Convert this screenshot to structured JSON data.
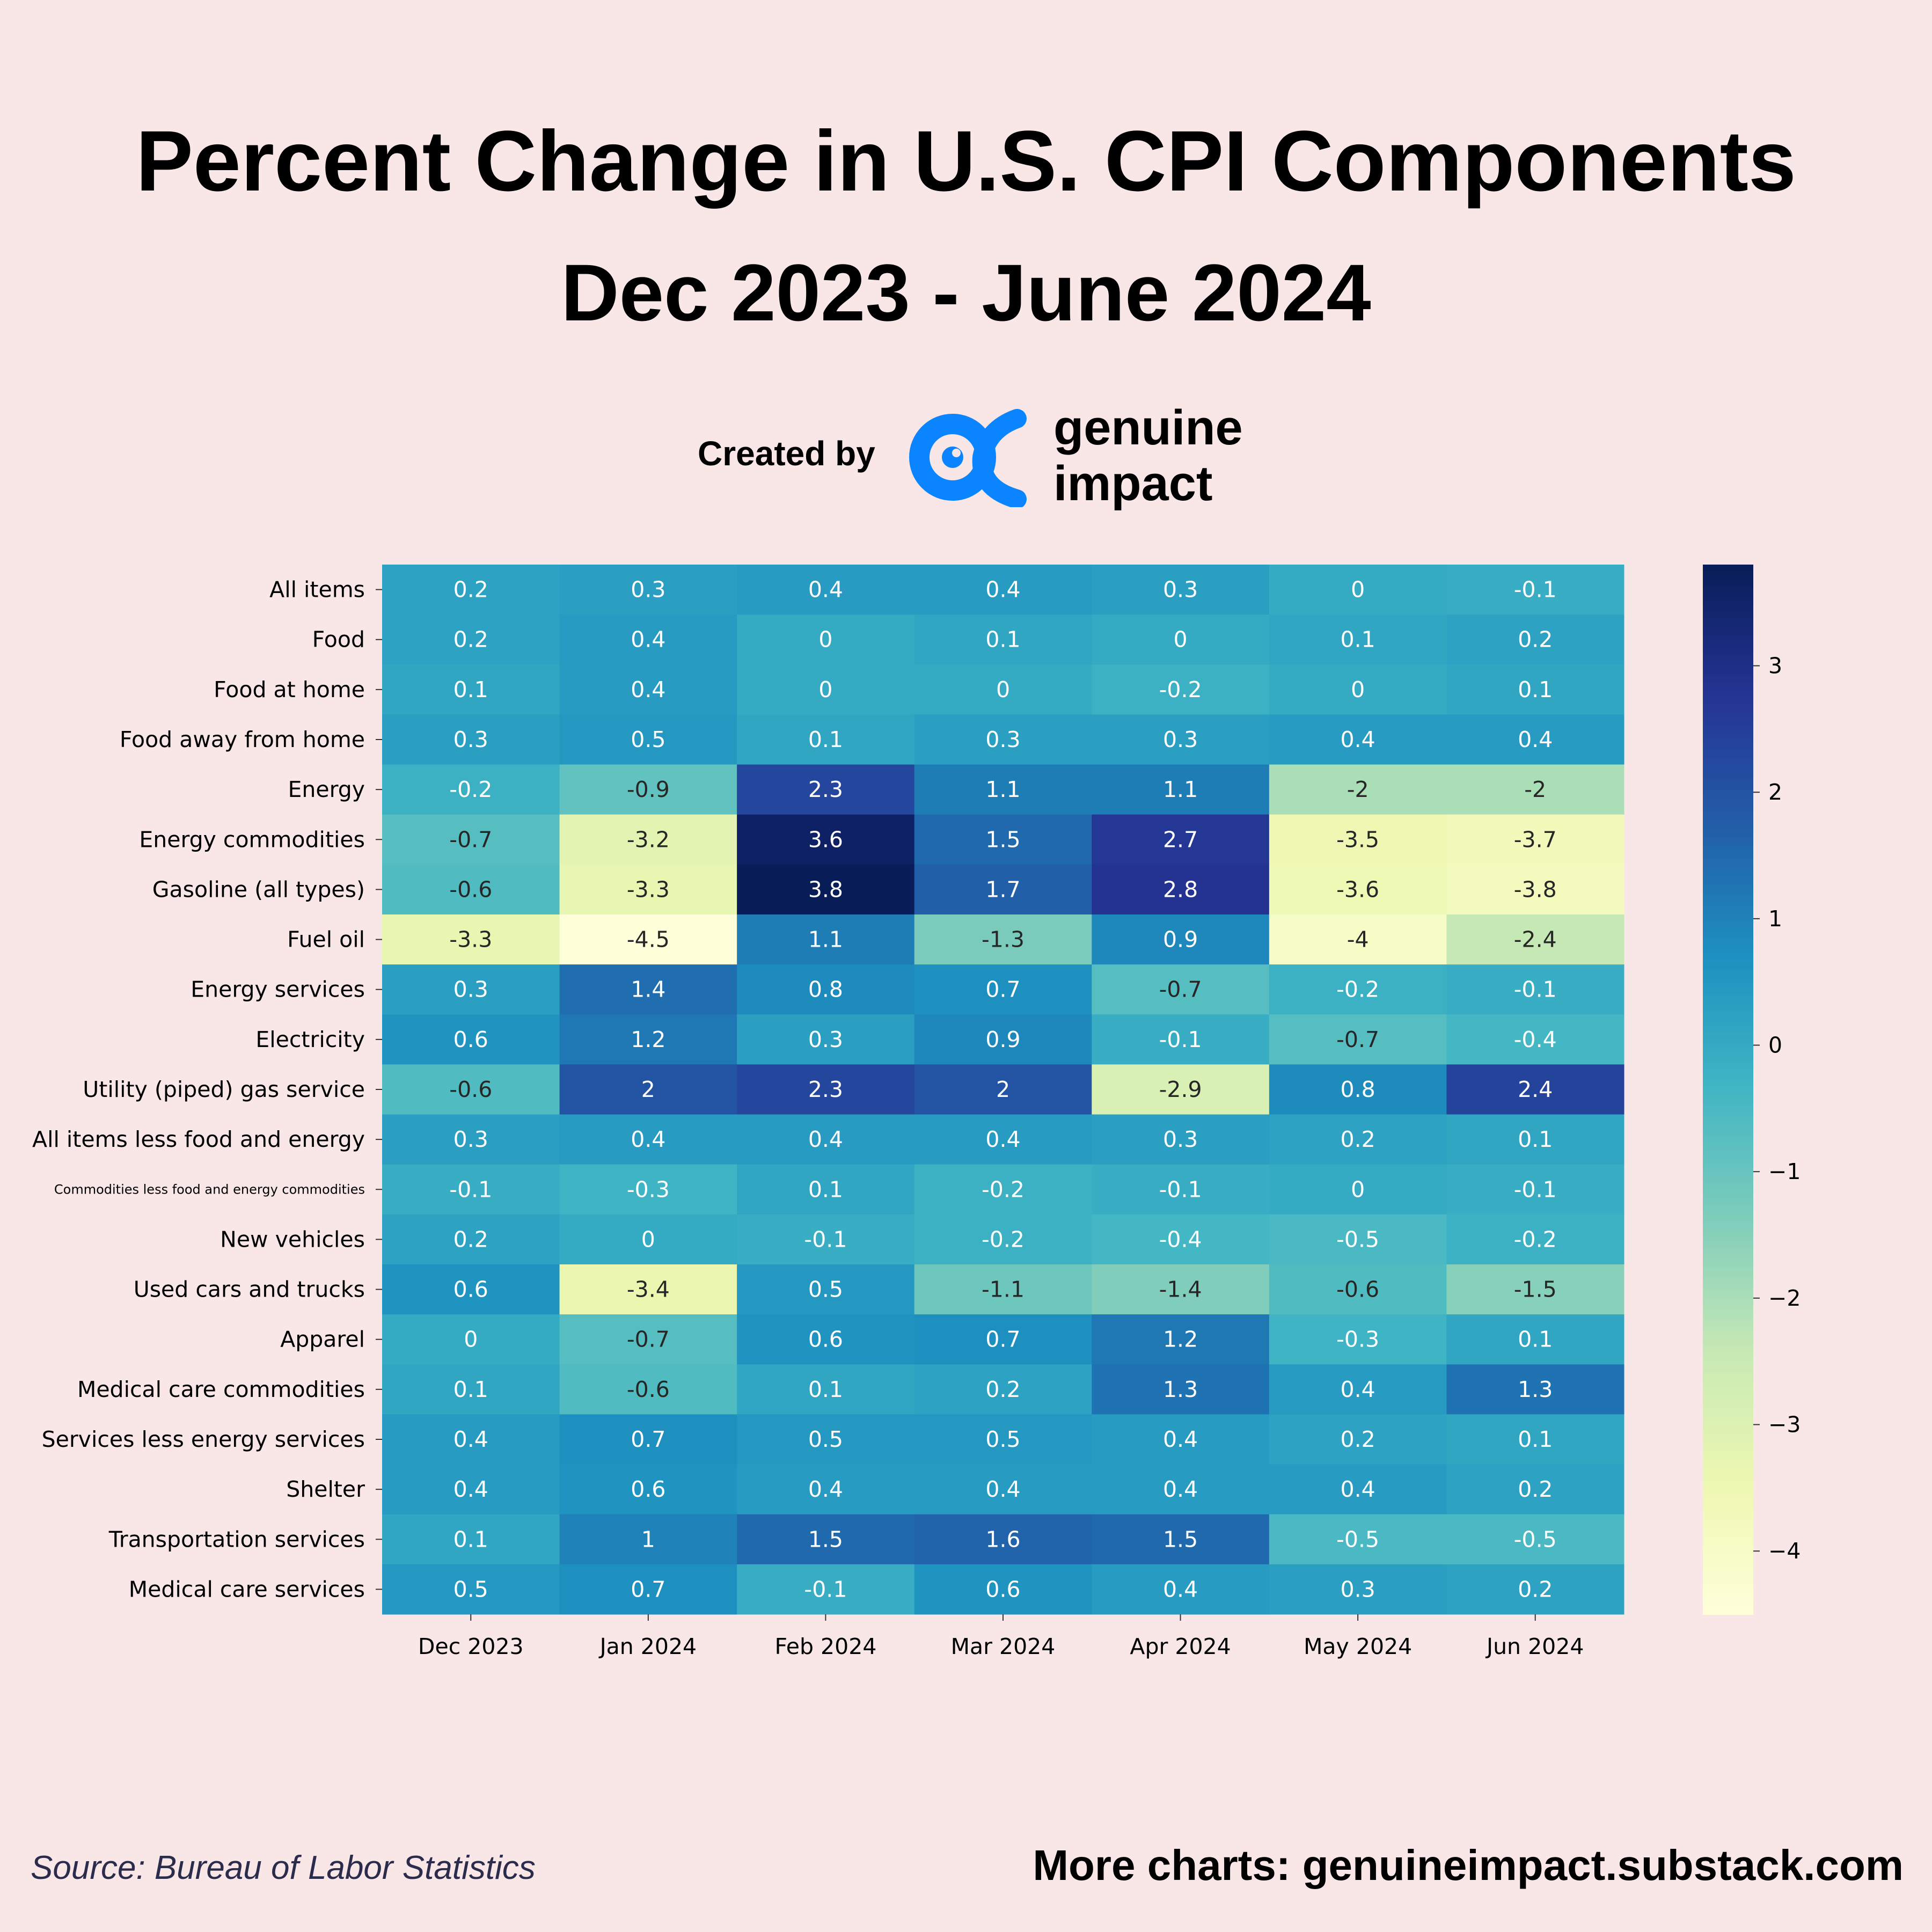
{
  "header": {
    "title": "Percent Change in U.S. CPI Components",
    "subtitle": "Dec 2023 - June 2024",
    "created_by": "Created by",
    "brand_line1": "genuine",
    "brand_line2": "impact",
    "brand_color": "#0a84ff"
  },
  "footer": {
    "source": "Source: Bureau of Labor Statistics",
    "more": "More charts: genuineimpact.substack.com"
  },
  "chart_data": {
    "type": "heatmap",
    "colormap": "YlGnBu",
    "colorbar": {
      "range": [
        -4.5,
        3.8
      ],
      "ticks": [
        3,
        2,
        1,
        0,
        -1,
        -2,
        -3,
        -4
      ]
    },
    "x": [
      "Dec 2023",
      "Jan 2024",
      "Feb 2024",
      "Mar 2024",
      "Apr 2024",
      "May 2024",
      "Jun 2024"
    ],
    "y": [
      "All items",
      "Food",
      "Food at home",
      "Food away from home",
      "Energy",
      "Energy commodities",
      "Gasoline (all types)",
      "Fuel oil",
      "Energy services",
      "Electricity",
      "Utility (piped) gas service",
      "All items less food and energy",
      "Commodities less food and energy commodities",
      "New vehicles",
      "Used cars and trucks",
      "Apparel",
      "Medical care commodities",
      "Services less energy services",
      "Shelter",
      "Transportation services",
      "Medical care services"
    ],
    "values": [
      [
        0.2,
        0.3,
        0.4,
        0.4,
        0.3,
        0,
        -0.1
      ],
      [
        0.2,
        0.4,
        0,
        0.1,
        0,
        0.1,
        0.2
      ],
      [
        0.1,
        0.4,
        0,
        0,
        -0.2,
        0,
        0.1
      ],
      [
        0.3,
        0.5,
        0.1,
        0.3,
        0.3,
        0.4,
        0.4
      ],
      [
        -0.2,
        -0.9,
        2.3,
        1.1,
        1.1,
        -2,
        -2
      ],
      [
        -0.7,
        -3.2,
        3.6,
        1.5,
        2.7,
        -3.5,
        -3.7
      ],
      [
        -0.6,
        -3.3,
        3.8,
        1.7,
        2.8,
        -3.6,
        -3.8
      ],
      [
        -3.3,
        -4.5,
        1.1,
        -1.3,
        0.9,
        -4,
        -2.4
      ],
      [
        0.3,
        1.4,
        0.8,
        0.7,
        -0.7,
        -0.2,
        -0.1
      ],
      [
        0.6,
        1.2,
        0.3,
        0.9,
        -0.1,
        -0.7,
        -0.4
      ],
      [
        -0.6,
        2,
        2.3,
        2,
        -2.9,
        0.8,
        2.4
      ],
      [
        0.3,
        0.4,
        0.4,
        0.4,
        0.3,
        0.2,
        0.1
      ],
      [
        -0.1,
        -0.3,
        0.1,
        -0.2,
        -0.1,
        0,
        -0.1
      ],
      [
        0.2,
        0,
        -0.1,
        -0.2,
        -0.4,
        -0.5,
        -0.2
      ],
      [
        0.6,
        -3.4,
        0.5,
        -1.1,
        -1.4,
        -0.6,
        -1.5
      ],
      [
        0,
        -0.7,
        0.6,
        0.7,
        1.2,
        -0.3,
        0.1
      ],
      [
        0.1,
        -0.6,
        0.1,
        0.2,
        1.3,
        0.4,
        1.3
      ],
      [
        0.4,
        0.7,
        0.5,
        0.5,
        0.4,
        0.2,
        0.1
      ],
      [
        0.4,
        0.6,
        0.4,
        0.4,
        0.4,
        0.4,
        0.2
      ],
      [
        0.1,
        1,
        1.5,
        1.6,
        1.5,
        -0.5,
        -0.5
      ],
      [
        0.5,
        0.7,
        -0.1,
        0.6,
        0.4,
        0.3,
        0.2
      ]
    ]
  }
}
